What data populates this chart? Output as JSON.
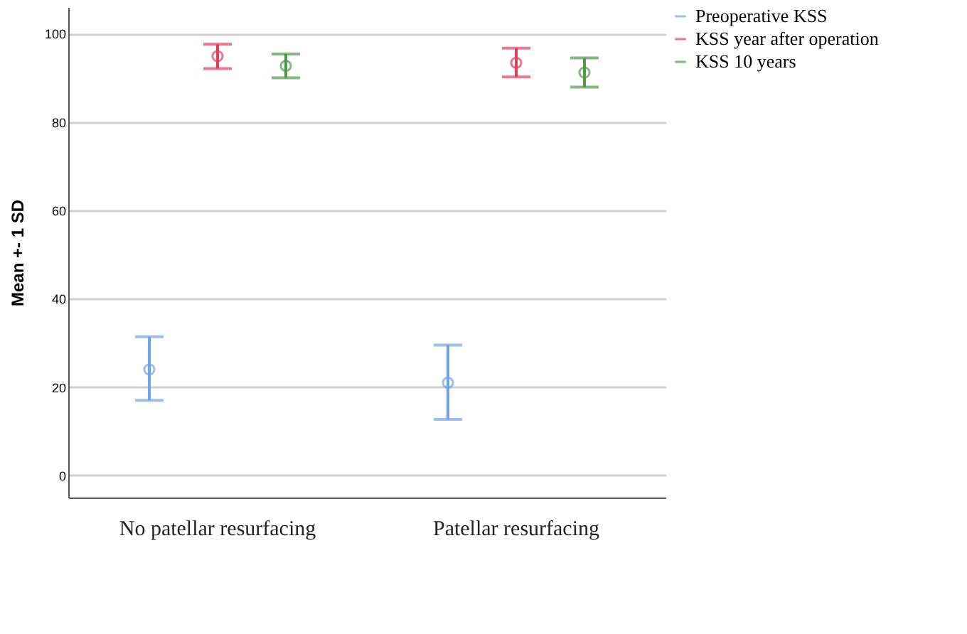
{
  "chart_data": {
    "type": "scatter",
    "ylabel": "Mean +- 1 SD",
    "categories": [
      "No patellar resurfacing",
      "Patellar resurfacing"
    ],
    "series": [
      {
        "name": "Preoperative KSS",
        "color": "#6fa3e8",
        "values": [
          24.0,
          21.0
        ],
        "errors": [
          [
            17.0,
            31.4
          ],
          [
            12.7,
            29.5
          ]
        ]
      },
      {
        "name": "KSS year after operation",
        "color": "#e0405f",
        "values": [
          94.9,
          93.4
        ],
        "errors": [
          [
            92.1,
            97.6
          ],
          [
            90.2,
            96.7
          ]
        ]
      },
      {
        "name": "KSS 10 years",
        "color": "#4f9a4a",
        "values": [
          92.7,
          91.2
        ],
        "errors": [
          [
            90.0,
            95.4
          ],
          [
            87.9,
            94.5
          ]
        ]
      }
    ],
    "ylim": [
      -5,
      106
    ],
    "yticks": [
      0,
      20,
      40,
      60,
      80,
      100
    ],
    "grid": "y",
    "legend": "top right",
    "marker": "circle"
  }
}
